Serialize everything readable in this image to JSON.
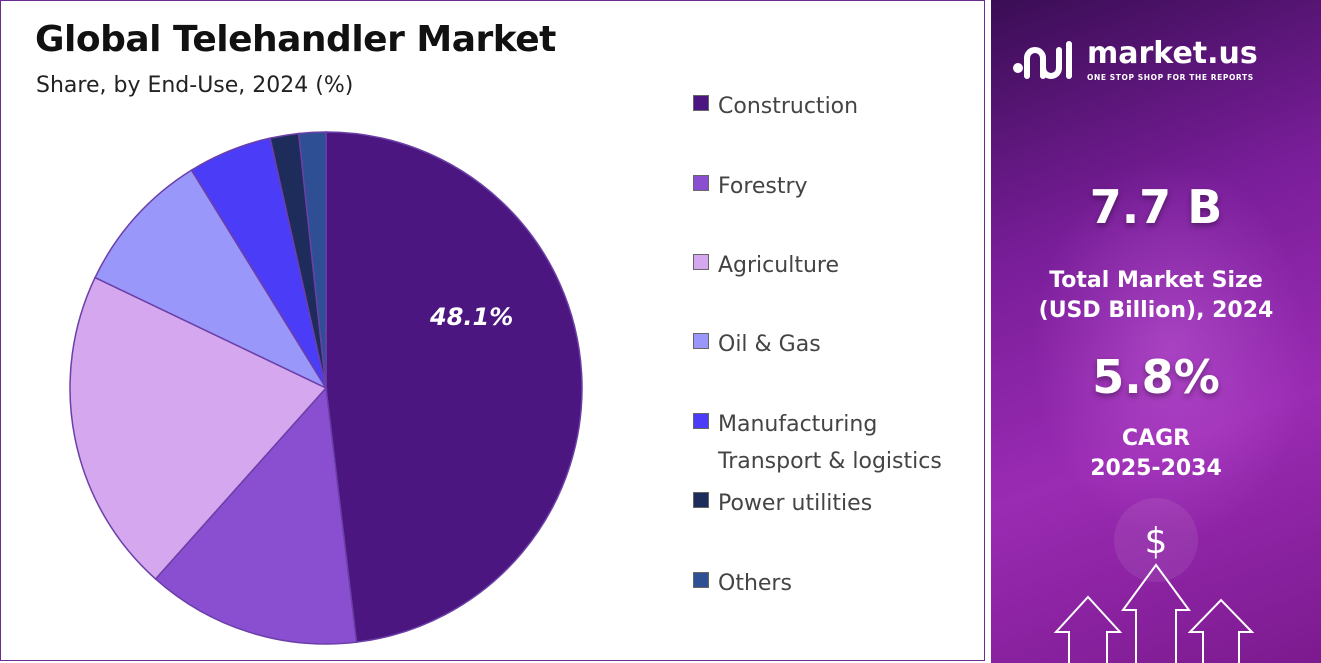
{
  "chart_data": {
    "type": "pie",
    "title": "Global Telehandler Market",
    "subtitle": "Share, by End-Use, 2024 (%)",
    "categories": [
      "Construction",
      "Forestry",
      "Agriculture",
      "Oil & Gas",
      "Manufacturing\nTransport & logistics",
      "Power utilities",
      "Others"
    ],
    "values": [
      48.1,
      13.5,
      20.5,
      9.1,
      5.3,
      1.8,
      1.7
    ],
    "colors": [
      "#4c1680",
      "#8a4fd0",
      "#d4a7ee",
      "#9997fa",
      "#4b3cf8",
      "#1e2c5c",
      "#2f4f94"
    ],
    "data_labels": [
      "48.1%",
      "",
      "",
      "",
      "",
      "",
      ""
    ],
    "legend_position": "right"
  },
  "brand": {
    "name": "market.us",
    "tagline": "ONE STOP SHOP FOR THE REPORTS"
  },
  "stats": {
    "market_size_value": "7.7 B",
    "market_size_label": "Total Market Size\n(USD Billion), 2024",
    "cagr_value": "5.8%",
    "cagr_label": "CAGR\n2025-2034"
  },
  "icons": {
    "currency": "$"
  }
}
